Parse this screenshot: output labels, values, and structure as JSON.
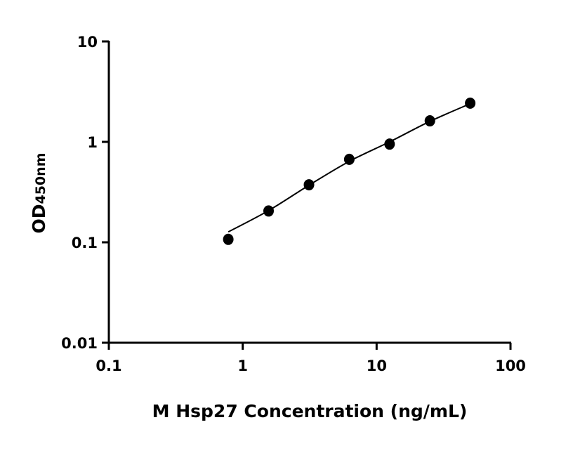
{
  "chart_data": {
    "type": "scatter",
    "title": "",
    "xlabel": "M Hsp27 Concentration (ng/mL)",
    "ylabel": {
      "main": "OD",
      "subscript": "450nm"
    },
    "xscale": "log",
    "yscale": "log",
    "xlim": [
      0.1,
      100
    ],
    "ylim": [
      0.01,
      10
    ],
    "xticks": [
      "0.1",
      "1",
      "10",
      "100"
    ],
    "yticks": [
      "0.01",
      "0.1",
      "1",
      "10"
    ],
    "grid": false,
    "series": [
      {
        "x": [
          0.78,
          1.56,
          3.125,
          6.25,
          12.5,
          25,
          50
        ],
        "y": [
          0.107,
          0.205,
          0.374,
          0.67,
          0.95,
          1.62,
          2.43
        ],
        "color": "#000000",
        "fit_curve": [
          0.127,
          0.207,
          0.37,
          0.64,
          1.0,
          1.6,
          2.4
        ]
      }
    ]
  }
}
